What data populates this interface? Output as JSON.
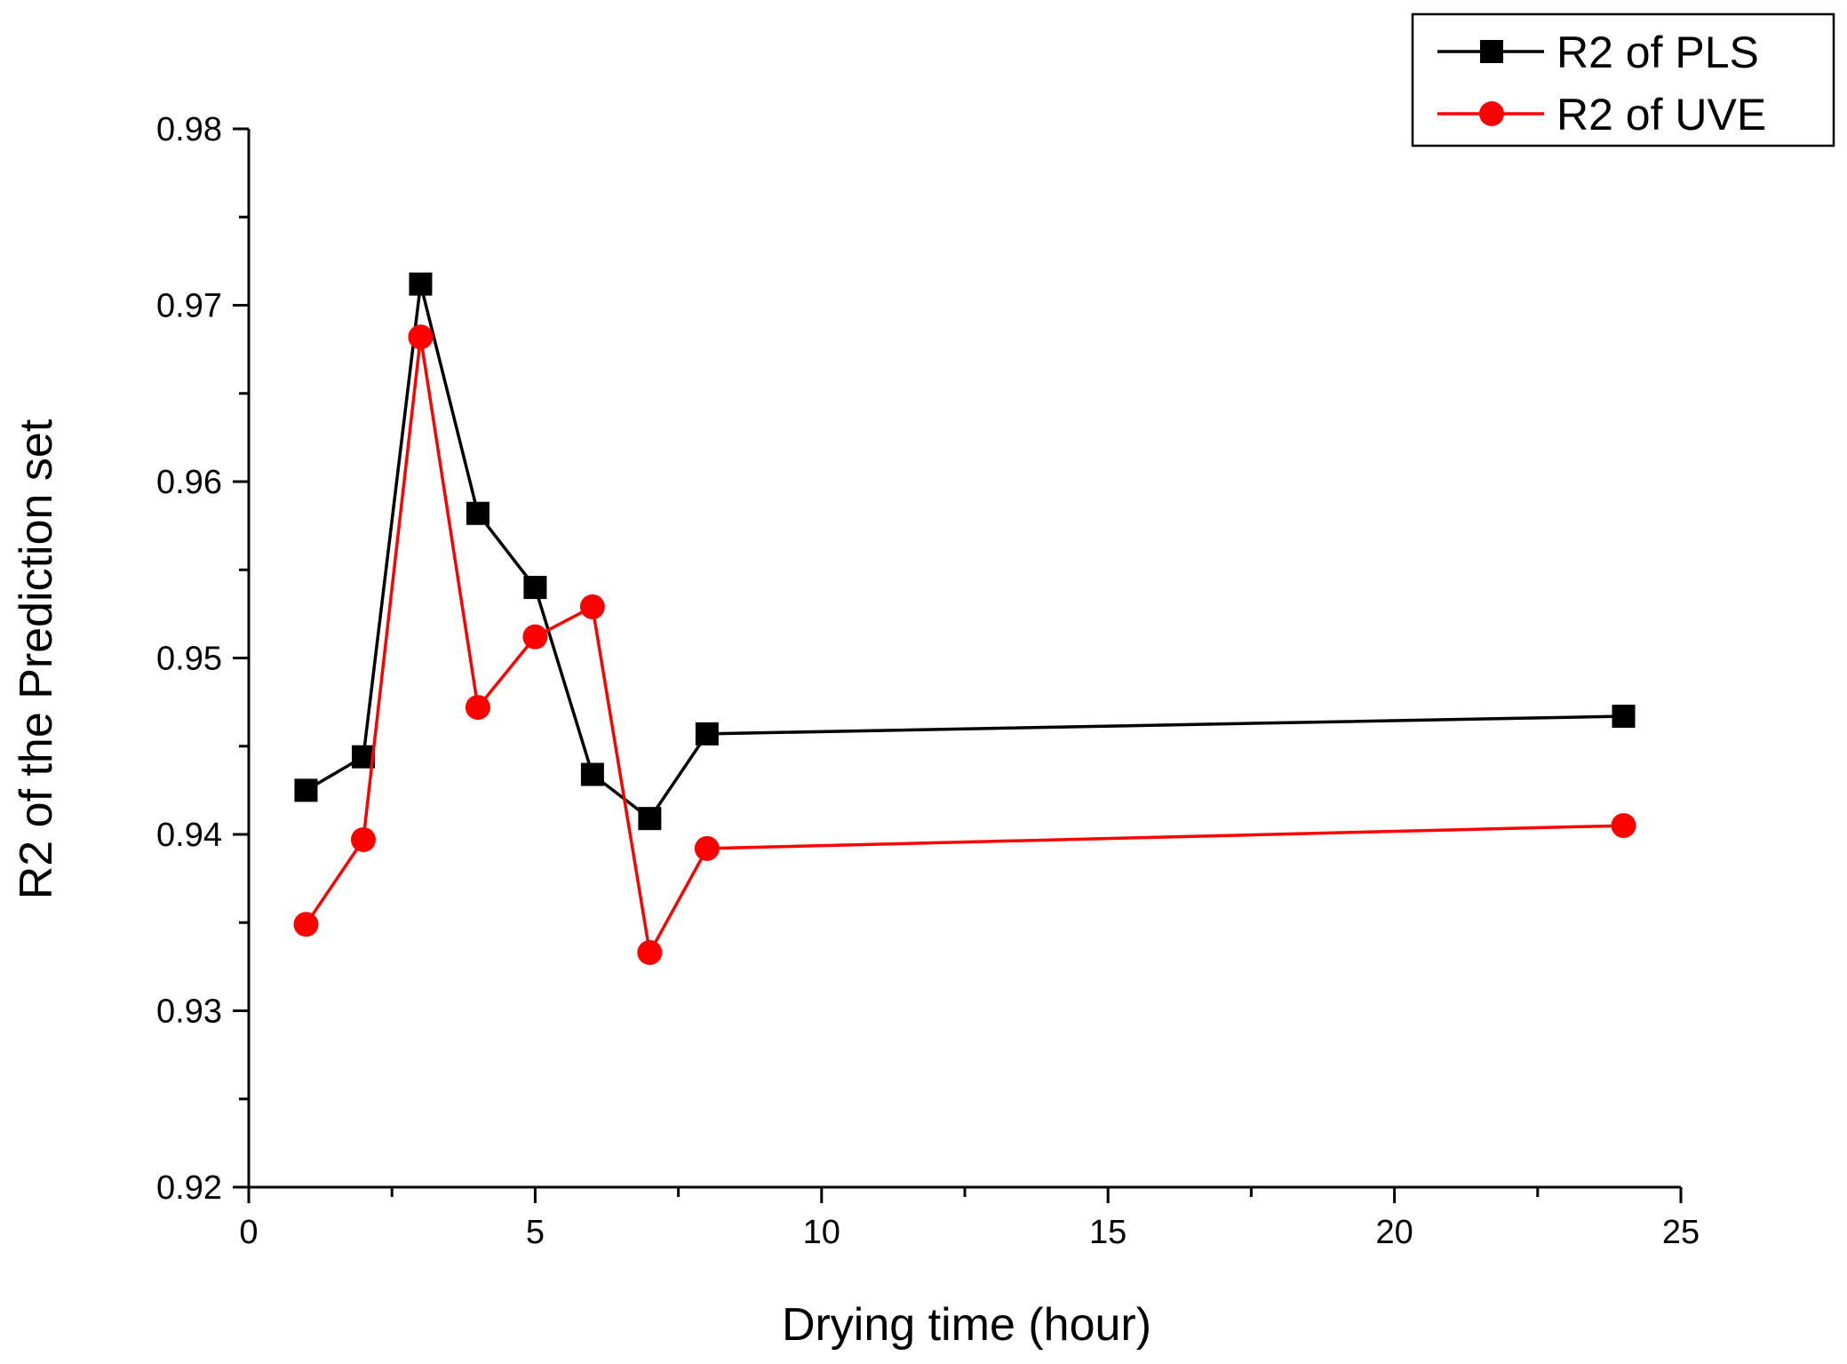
{
  "chart_data": {
    "type": "line",
    "title": "",
    "xlabel": "Drying time (hour)",
    "ylabel": "R2 of the Prediction set",
    "xlim": [
      0,
      25
    ],
    "ylim": [
      0.92,
      0.98
    ],
    "x_major_ticks": [
      0,
      5,
      10,
      15,
      20,
      25
    ],
    "x_tick_labels": [
      "0",
      "5",
      "10",
      "15",
      "20",
      "25"
    ],
    "y_major_ticks": [
      0.92,
      0.93,
      0.94,
      0.95,
      0.96,
      0.97,
      0.98
    ],
    "y_tick_labels": [
      "0.92",
      "0.93",
      "0.94",
      "0.95",
      "0.96",
      "0.97",
      "0.98"
    ],
    "grid": false,
    "legend_position": "top-right",
    "x": [
      1,
      2,
      3,
      4,
      5,
      6,
      7,
      8,
      24
    ],
    "series": [
      {
        "name": "R2 of PLS",
        "color": "#000000",
        "marker": "square",
        "values": [
          0.9425,
          0.9444,
          0.9712,
          0.9582,
          0.954,
          0.9434,
          0.9409,
          0.9457,
          0.9467
        ]
      },
      {
        "name": "R2 of UVE",
        "color": "#ff0000",
        "marker": "circle",
        "values": [
          0.9349,
          0.9397,
          0.9682,
          0.9472,
          0.9512,
          0.9529,
          0.9333,
          0.9392,
          0.9405
        ]
      }
    ]
  }
}
